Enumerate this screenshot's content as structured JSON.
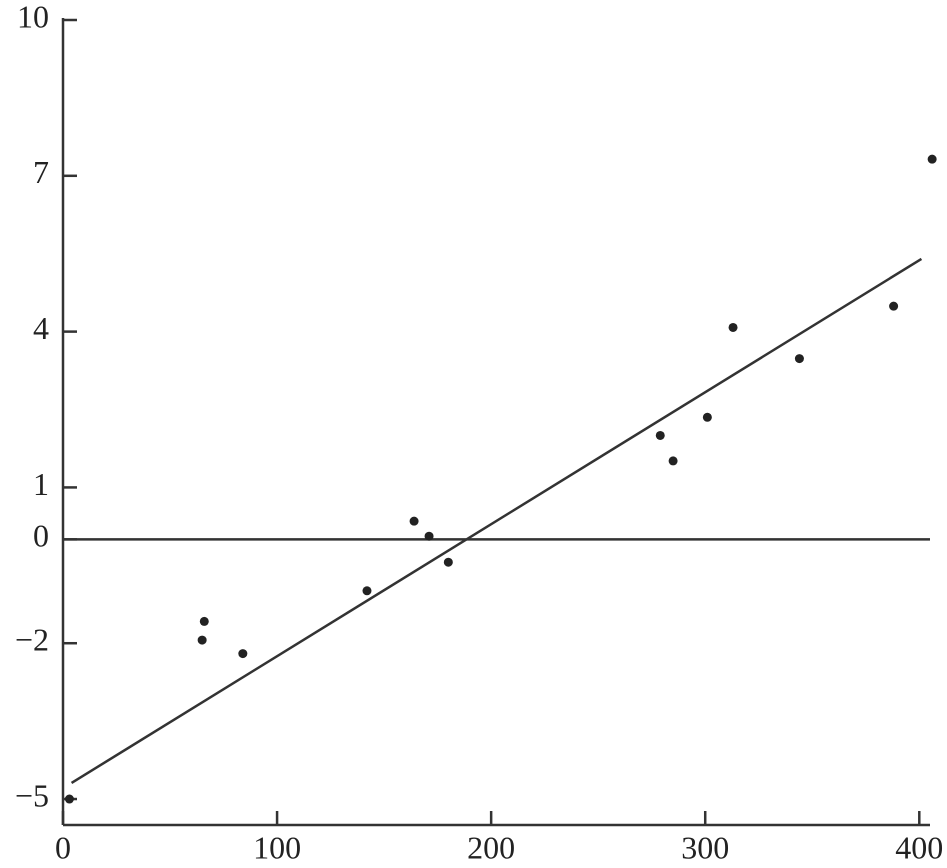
{
  "chart_data": {
    "type": "scatter",
    "series": [
      {
        "kind": "points",
        "color": "#222222",
        "x": [
          3,
          65,
          66,
          84,
          142,
          164,
          171,
          180,
          279,
          285,
          301,
          313,
          344,
          388,
          406
        ],
        "values": [
          -5,
          -1.94,
          -1.58,
          -2.2,
          -0.99,
          0.35,
          0.06,
          -0.44,
          2.0,
          1.51,
          2.35,
          4.08,
          3.48,
          4.49,
          7.32
        ]
      },
      {
        "kind": "line",
        "color": "#333333",
        "x": [
          4,
          401
        ],
        "values": [
          -4.69,
          5.4
        ]
      }
    ],
    "hline": 0,
    "xlim": [
      0,
      405
    ],
    "ylim": [
      -5.5,
      10
    ],
    "xticks": [
      0,
      100,
      200,
      300,
      400
    ],
    "yticks": [
      {
        "value": -5,
        "label": "−5"
      },
      {
        "value": -2,
        "label": "−2"
      },
      0,
      1,
      4,
      7,
      10
    ]
  }
}
